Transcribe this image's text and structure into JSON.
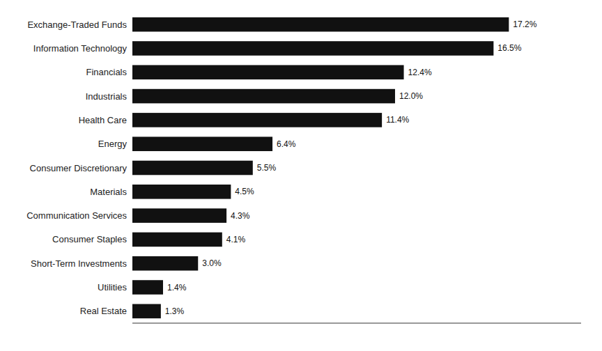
{
  "chart_data": {
    "type": "bar",
    "orientation": "horizontal",
    "categories": [
      "Real Estate",
      "Utilities",
      "Short-Term Investments",
      "Consumer Staples",
      "Communication Services",
      "Materials",
      "Consumer Discretionary",
      "Energy",
      "Health Care",
      "Industrials",
      "Financials",
      "Information Technology",
      "Exchange-Traded Funds"
    ],
    "values": [
      1.3,
      1.4,
      3.0,
      4.1,
      4.3,
      4.5,
      5.5,
      6.4,
      11.4,
      12.0,
      12.4,
      16.5,
      17.2
    ],
    "value_labels": [
      "1.3%",
      "1.4%",
      "3.0%",
      "4.1%",
      "4.3%",
      "4.5%",
      "5.5%",
      "6.4%",
      "11.4%",
      "12.0%",
      "12.4%",
      "16.5%",
      "17.2%"
    ],
    "color": "#111111",
    "xlim": [
      0,
      20.5
    ],
    "xticks": [],
    "data_labels": true,
    "tick_labels": "y",
    "grid": false
  }
}
